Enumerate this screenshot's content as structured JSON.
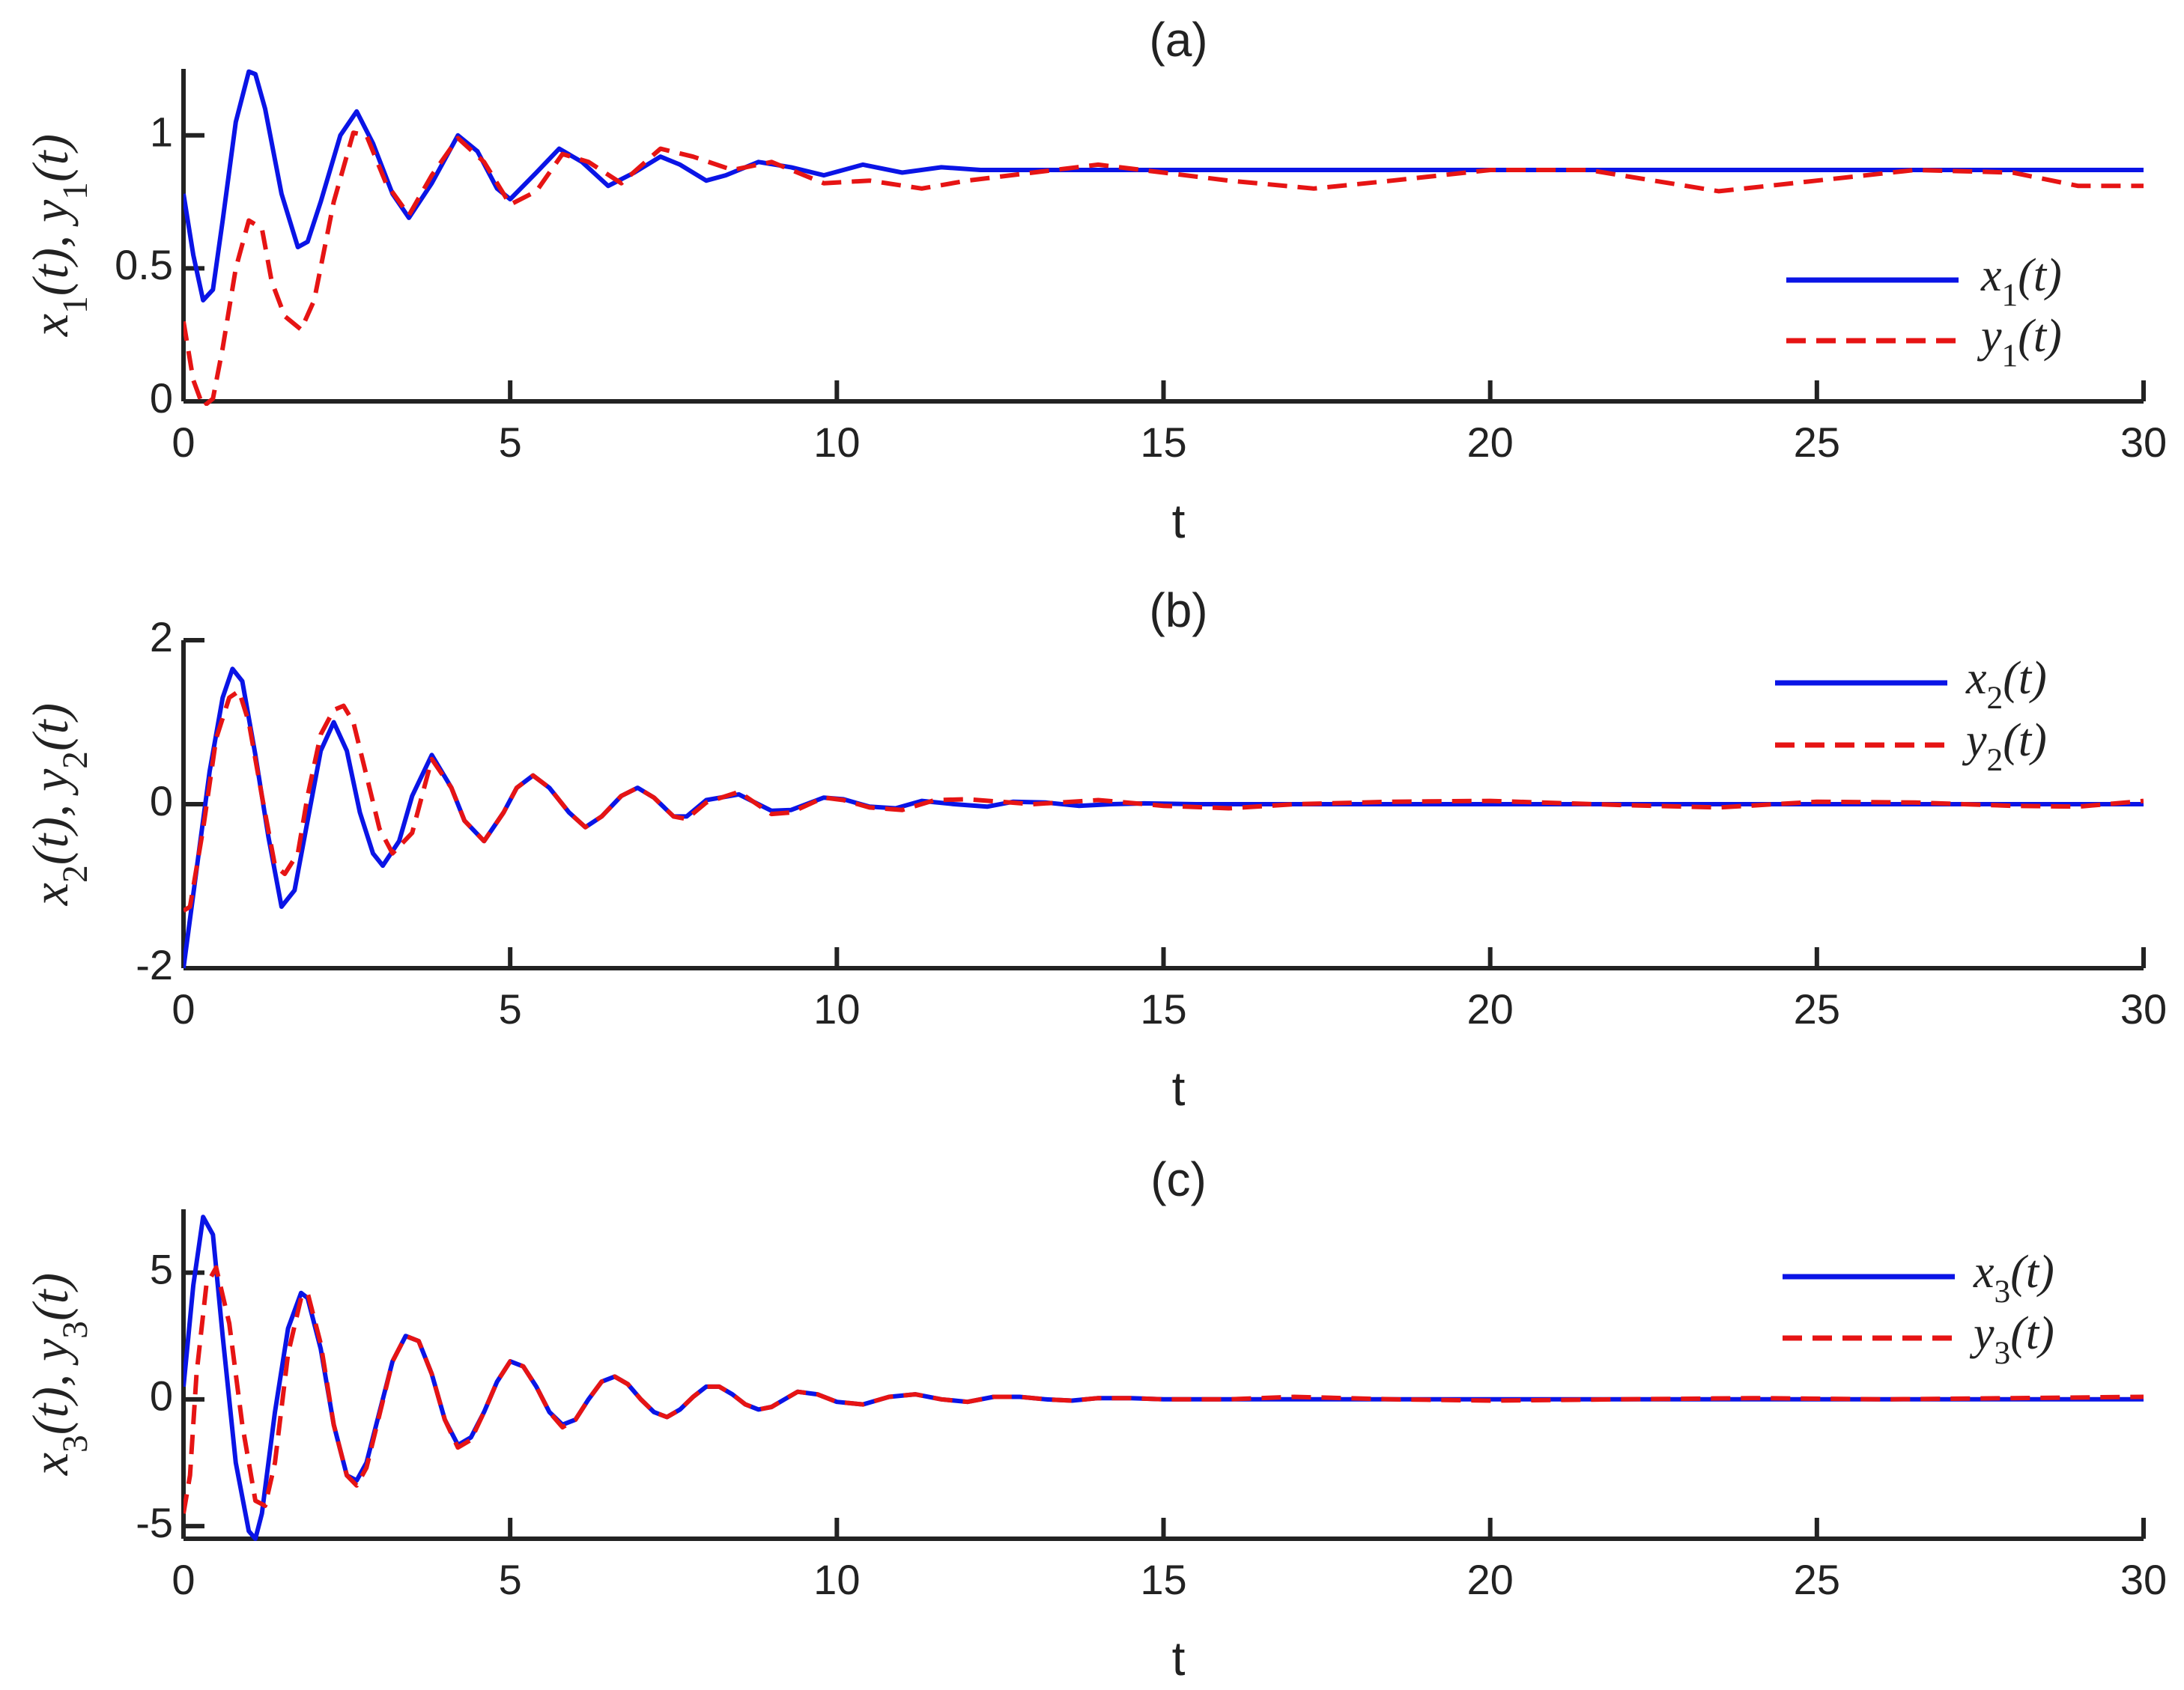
{
  "chart_data": [
    {
      "type": "line",
      "title": "(a)",
      "xlabel": "t",
      "ylabel": "x1(t), y1(t)",
      "xlim": [
        0,
        30
      ],
      "ylim": [
        0,
        1.25
      ],
      "xticks": [
        "0",
        "5",
        "10",
        "15",
        "20",
        "25",
        "30"
      ],
      "yticks": [
        "0",
        "0.5",
        "1"
      ],
      "grid": false,
      "legend_position": "right",
      "series": [
        {
          "name": "x1(t)",
          "color": "#0a14e6",
          "style": "solid",
          "x": [
            0,
            0.15,
            0.3,
            0.45,
            0.6,
            0.8,
            1.0,
            1.1,
            1.25,
            1.5,
            1.75,
            1.9,
            2.1,
            2.4,
            2.65,
            2.9,
            3.2,
            3.45,
            3.8,
            4.2,
            4.5,
            4.8,
            5.0,
            5.4,
            5.75,
            6.1,
            6.5,
            6.9,
            7.3,
            7.6,
            8.0,
            8.3,
            8.8,
            9.3,
            9.8,
            10.4,
            11.0,
            11.6,
            12.2,
            13.0,
            14.0,
            15.0,
            16.0,
            18.0,
            20.0,
            22.0,
            25.0,
            28.0,
            30.0
          ],
          "y": [
            0.78,
            0.55,
            0.38,
            0.42,
            0.68,
            1.05,
            1.24,
            1.23,
            1.1,
            0.78,
            0.58,
            0.6,
            0.75,
            1.0,
            1.09,
            0.97,
            0.78,
            0.69,
            0.82,
            1.0,
            0.94,
            0.8,
            0.76,
            0.86,
            0.95,
            0.9,
            0.81,
            0.86,
            0.92,
            0.89,
            0.83,
            0.85,
            0.9,
            0.88,
            0.85,
            0.89,
            0.86,
            0.88,
            0.87,
            0.87,
            0.87,
            0.87,
            0.87,
            0.87,
            0.87,
            0.87,
            0.87,
            0.87,
            0.87
          ]
        },
        {
          "name": "y1(t)",
          "color": "#e61414",
          "style": "dashed",
          "x": [
            0,
            0.15,
            0.3,
            0.45,
            0.6,
            0.8,
            1.0,
            1.2,
            1.35,
            1.55,
            1.8,
            2.0,
            2.3,
            2.6,
            2.8,
            3.1,
            3.45,
            3.8,
            4.2,
            4.6,
            5.0,
            5.4,
            5.8,
            6.2,
            6.7,
            7.3,
            7.8,
            8.4,
            9.0,
            9.8,
            10.5,
            11.3,
            12.0,
            13.0,
            14.0,
            15.0,
            16.0,
            17.3,
            18.5,
            20.0,
            21.5,
            23.5,
            25.0,
            26.5,
            28.0,
            29.0,
            30.0
          ],
          "y": [
            0.3,
            0.08,
            -0.02,
            0.01,
            0.2,
            0.5,
            0.68,
            0.65,
            0.45,
            0.32,
            0.27,
            0.38,
            0.75,
            1.01,
            1.0,
            0.82,
            0.7,
            0.85,
            0.99,
            0.9,
            0.74,
            0.79,
            0.93,
            0.9,
            0.82,
            0.95,
            0.92,
            0.87,
            0.9,
            0.82,
            0.83,
            0.8,
            0.83,
            0.86,
            0.89,
            0.86,
            0.83,
            0.8,
            0.83,
            0.87,
            0.87,
            0.79,
            0.83,
            0.87,
            0.86,
            0.81,
            0.81
          ]
        }
      ]
    },
    {
      "type": "line",
      "title": "(b)",
      "xlabel": "t",
      "ylabel": "x2(t), y2(t)",
      "xlim": [
        0,
        30
      ],
      "ylim": [
        -2,
        2
      ],
      "xticks": [
        "0",
        "5",
        "10",
        "15",
        "20",
        "25",
        "30"
      ],
      "yticks": [
        "-2",
        "0",
        "2"
      ],
      "grid": false,
      "legend_position": "top-right",
      "series": [
        {
          "name": "x2(t)",
          "color": "#0a14e6",
          "style": "solid",
          "x": [
            0,
            0.2,
            0.4,
            0.6,
            0.75,
            0.9,
            1.1,
            1.3,
            1.5,
            1.7,
            1.9,
            2.1,
            2.3,
            2.5,
            2.7,
            2.9,
            3.05,
            3.3,
            3.5,
            3.8,
            4.1,
            4.3,
            4.6,
            4.9,
            5.1,
            5.35,
            5.6,
            5.9,
            6.15,
            6.4,
            6.7,
            6.95,
            7.2,
            7.5,
            7.7,
            8.0,
            8.5,
            9.0,
            9.3,
            9.8,
            10.1,
            10.5,
            10.9,
            11.3,
            11.8,
            12.3,
            12.7,
            13.2,
            13.7,
            14.2,
            14.7,
            15.5,
            17.0,
            19.0,
            22.0,
            26.0,
            30.0
          ],
          "y": [
            -2.0,
            -0.8,
            0.4,
            1.3,
            1.65,
            1.5,
            0.6,
            -0.4,
            -1.25,
            -1.05,
            -0.2,
            0.65,
            1.0,
            0.65,
            -0.1,
            -0.6,
            -0.75,
            -0.45,
            0.1,
            0.6,
            0.2,
            -0.2,
            -0.45,
            -0.1,
            0.2,
            0.35,
            0.2,
            -0.1,
            -0.28,
            -0.15,
            0.1,
            0.2,
            0.08,
            -0.15,
            -0.15,
            0.05,
            0.12,
            -0.08,
            -0.07,
            0.08,
            0.06,
            -0.03,
            -0.05,
            0.04,
            0.0,
            -0.03,
            0.03,
            0.02,
            -0.02,
            0.0,
            0.01,
            0.0,
            0.0,
            0.0,
            0.0,
            0.0,
            0.0
          ]
        },
        {
          "name": "y2(t)",
          "color": "#e61414",
          "style": "dashed",
          "x": [
            0,
            0.1,
            0.3,
            0.5,
            0.7,
            0.85,
            1.0,
            1.2,
            1.4,
            1.55,
            1.75,
            1.9,
            2.1,
            2.3,
            2.45,
            2.6,
            2.8,
            3.0,
            3.2,
            3.5,
            3.8,
            4.1,
            4.3,
            4.6,
            4.9,
            5.1,
            5.35,
            5.6,
            5.9,
            6.15,
            6.4,
            6.7,
            6.95,
            7.2,
            7.5,
            7.7,
            8.0,
            8.5,
            9.0,
            9.3,
            9.8,
            10.1,
            10.5,
            11.0,
            11.5,
            12.0,
            13.0,
            14.0,
            15.0,
            16.0,
            17.0,
            18.5,
            20.0,
            22.0,
            23.5,
            25.0,
            26.5,
            28.0,
            29.0,
            30.0
          ],
          "y": [
            -1.3,
            -1.25,
            -0.3,
            0.8,
            1.3,
            1.38,
            1.0,
            0.1,
            -0.75,
            -0.85,
            -0.6,
            0.1,
            0.85,
            1.15,
            1.2,
            1.0,
            0.35,
            -0.3,
            -0.6,
            -0.35,
            0.55,
            0.2,
            -0.2,
            -0.45,
            -0.1,
            0.2,
            0.35,
            0.2,
            -0.1,
            -0.28,
            -0.15,
            0.1,
            0.2,
            0.08,
            -0.15,
            -0.18,
            0.02,
            0.15,
            -0.12,
            -0.1,
            0.08,
            0.05,
            -0.04,
            -0.07,
            0.05,
            0.06,
            0.0,
            0.05,
            -0.02,
            -0.05,
            0.0,
            0.03,
            0.04,
            -0.01,
            -0.04,
            0.03,
            0.02,
            -0.02,
            -0.03,
            0.04
          ]
        }
      ]
    },
    {
      "type": "line",
      "title": "(c)",
      "xlabel": "t",
      "ylabel": "x3(t), y3(t)",
      "xlim": [
        0,
        30
      ],
      "ylim": [
        -5.5,
        7.5
      ],
      "xticks": [
        "0",
        "5",
        "10",
        "15",
        "20",
        "25",
        "30"
      ],
      "yticks": [
        "-5",
        "0",
        "5"
      ],
      "grid": false,
      "legend_position": "top-right",
      "series": [
        {
          "name": "x3(t)",
          "color": "#0a14e6",
          "style": "solid",
          "x": [
            0,
            0.15,
            0.3,
            0.45,
            0.6,
            0.8,
            1.0,
            1.1,
            1.2,
            1.4,
            1.6,
            1.8,
            1.9,
            2.1,
            2.3,
            2.5,
            2.65,
            2.8,
            3.0,
            3.2,
            3.4,
            3.6,
            3.8,
            4.0,
            4.2,
            4.4,
            4.6,
            4.8,
            5.0,
            5.2,
            5.4,
            5.6,
            5.8,
            6.0,
            6.2,
            6.4,
            6.6,
            6.8,
            7.0,
            7.2,
            7.4,
            7.6,
            7.8,
            8.0,
            8.2,
            8.4,
            8.6,
            8.8,
            9.0,
            9.2,
            9.4,
            9.7,
            10.0,
            10.4,
            10.8,
            11.2,
            11.6,
            12.0,
            12.4,
            12.8,
            13.2,
            13.6,
            14.0,
            14.5,
            15.0,
            16.0,
            18.0,
            20.0,
            25.0,
            30.0
          ],
          "y": [
            0.5,
            4.5,
            7.2,
            6.5,
            2.5,
            -2.5,
            -5.2,
            -5.5,
            -4.5,
            -0.5,
            2.8,
            4.2,
            4.0,
            2.0,
            -1.0,
            -3.0,
            -3.2,
            -2.5,
            -0.5,
            1.5,
            2.5,
            2.3,
            1.0,
            -0.8,
            -1.8,
            -1.5,
            -0.5,
            0.7,
            1.5,
            1.3,
            0.5,
            -0.5,
            -1.0,
            -0.8,
            0.0,
            0.7,
            0.9,
            0.6,
            0.0,
            -0.5,
            -0.7,
            -0.4,
            0.1,
            0.5,
            0.5,
            0.2,
            -0.2,
            -0.4,
            -0.3,
            0.0,
            0.3,
            0.2,
            -0.1,
            -0.2,
            0.1,
            0.2,
            0.0,
            -0.1,
            0.1,
            0.1,
            0.0,
            -0.05,
            0.05,
            0.05,
            0.0,
            0.0,
            0.0,
            0.0,
            0.0,
            0.0
          ]
        },
        {
          "name": "y3(t)",
          "color": "#e61414",
          "style": "dashed",
          "x": [
            0,
            0.1,
            0.2,
            0.35,
            0.5,
            0.7,
            0.9,
            1.1,
            1.25,
            1.4,
            1.6,
            1.8,
            1.9,
            2.1,
            2.3,
            2.5,
            2.65,
            2.8,
            3.0,
            3.2,
            3.4,
            3.6,
            3.8,
            4.0,
            4.2,
            4.4,
            4.6,
            4.8,
            5.0,
            5.2,
            5.4,
            5.6,
            5.8,
            6.0,
            6.2,
            6.4,
            6.6,
            6.8,
            7.0,
            7.2,
            7.4,
            7.6,
            7.8,
            8.0,
            8.2,
            8.4,
            8.6,
            8.8,
            9.0,
            9.2,
            9.4,
            9.7,
            10.0,
            10.4,
            10.8,
            11.2,
            11.6,
            12.0,
            12.4,
            12.8,
            13.2,
            13.6,
            14.0,
            14.5,
            15.0,
            16.0,
            17.0,
            18.5,
            20.0,
            22.0,
            24.0,
            26.0,
            28.0,
            30.0
          ],
          "y": [
            -4.5,
            -3.0,
            1.0,
            4.5,
            5.2,
            3.0,
            -1.0,
            -4.0,
            -4.2,
            -2.5,
            1.8,
            4.0,
            4.2,
            2.2,
            -1.0,
            -3.0,
            -3.4,
            -2.7,
            -0.6,
            1.5,
            2.5,
            2.3,
            1.0,
            -0.8,
            -1.9,
            -1.6,
            -0.5,
            0.7,
            1.5,
            1.3,
            0.5,
            -0.5,
            -1.1,
            -0.8,
            0.0,
            0.7,
            0.9,
            0.6,
            0.0,
            -0.5,
            -0.7,
            -0.4,
            0.1,
            0.5,
            0.5,
            0.2,
            -0.2,
            -0.4,
            -0.3,
            0.0,
            0.3,
            0.2,
            -0.1,
            -0.2,
            0.1,
            0.2,
            0.0,
            -0.1,
            0.1,
            0.1,
            0.0,
            -0.05,
            0.05,
            0.05,
            0.0,
            0.0,
            0.1,
            0.0,
            -0.05,
            0.0,
            0.05,
            0.0,
            0.05,
            0.1
          ]
        }
      ]
    }
  ]
}
